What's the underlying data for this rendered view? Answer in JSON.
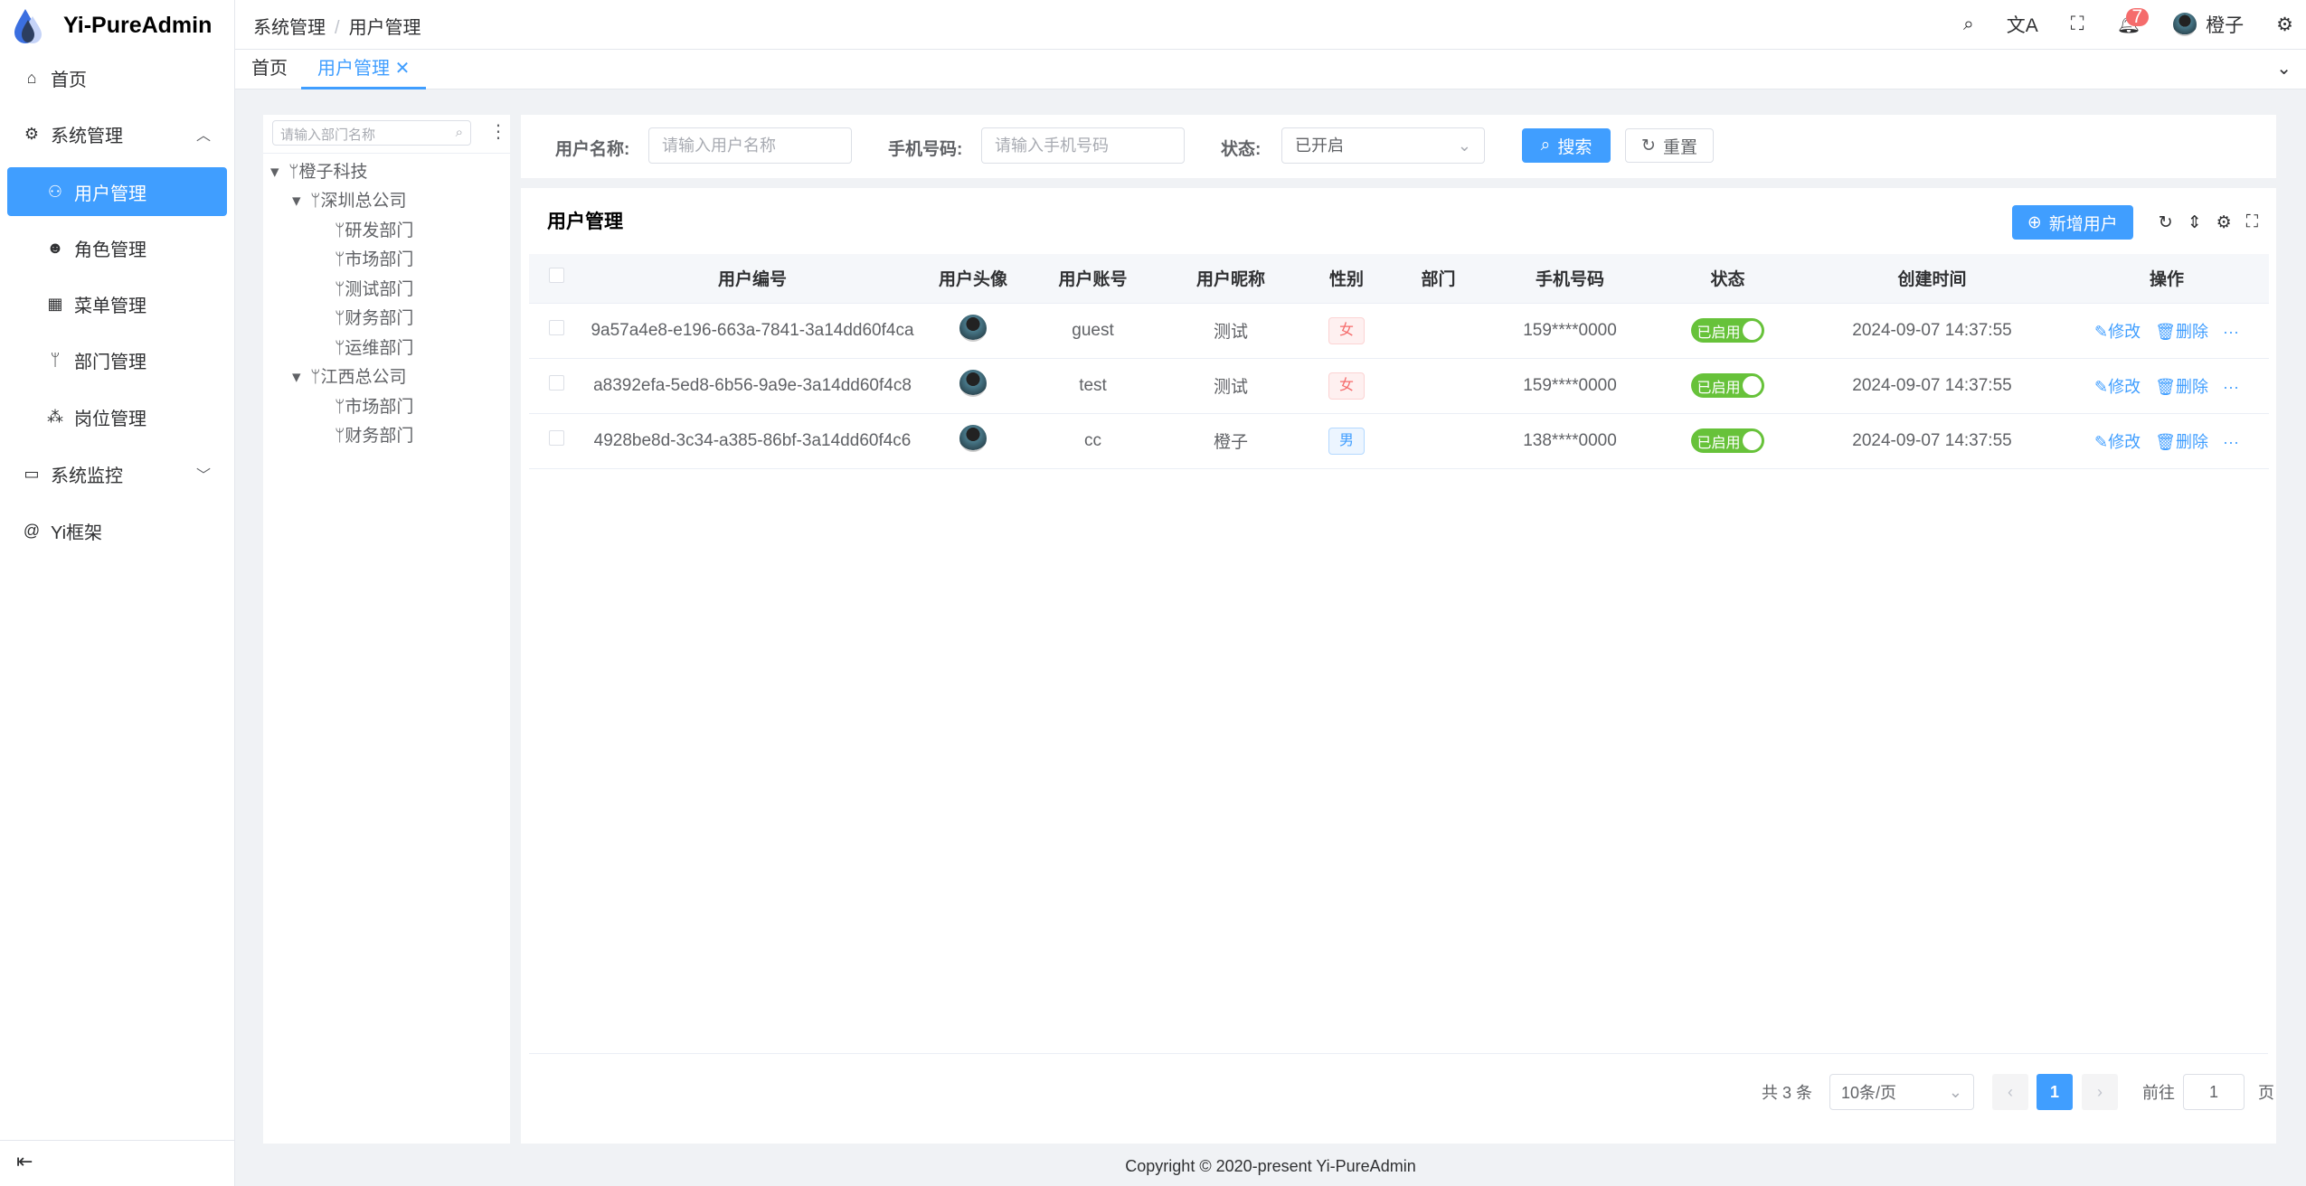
{
  "app": {
    "title": "Yi-PureAdmin",
    "colors": {
      "primary": "#409eff",
      "success": "#67c23a",
      "danger": "#f56c6c"
    }
  },
  "sidebar": {
    "items": [
      {
        "label": "首页",
        "icon": "home-icon"
      },
      {
        "label": "系统管理",
        "icon": "gear-icon",
        "expanded": true
      },
      {
        "label": "用户管理",
        "icon": "user-icon",
        "active": true
      },
      {
        "label": "角色管理",
        "icon": "role-icon"
      },
      {
        "label": "菜单管理",
        "icon": "grid-icon"
      },
      {
        "label": "部门管理",
        "icon": "branch-icon"
      },
      {
        "label": "岗位管理",
        "icon": "org-icon"
      },
      {
        "label": "系统监控",
        "icon": "monitor-icon"
      },
      {
        "label": "Yi框架",
        "icon": "at-icon"
      }
    ]
  },
  "header": {
    "breadcrumb": [
      "系统管理",
      "用户管理"
    ],
    "notification_count": "7",
    "username": "橙子"
  },
  "tabs": [
    {
      "label": "首页"
    },
    {
      "label": "用户管理",
      "active": true
    }
  ],
  "tree": {
    "placeholder": "请输入部门名称",
    "nodes": [
      "橙子科技",
      "深圳总公司",
      "研发部门",
      "市场部门",
      "测试部门",
      "财务部门",
      "运维部门",
      "江西总公司",
      "市场部门",
      "财务部门"
    ]
  },
  "search": {
    "username_label": "用户名称:",
    "username_placeholder": "请输入用户名称",
    "phone_label": "手机号码:",
    "phone_placeholder": "请输入手机号码",
    "status_label": "状态:",
    "status_value": "已开启",
    "search_btn": "搜索",
    "reset_btn": "重置"
  },
  "panel": {
    "title": "用户管理",
    "add_btn": "新增用户"
  },
  "table": {
    "columns": [
      "用户编号",
      "用户头像",
      "用户账号",
      "用户昵称",
      "性别",
      "部门",
      "手机号码",
      "状态",
      "创建时间",
      "操作"
    ],
    "rows": [
      {
        "id": "9a57a4e8-e196-663a-7841-3a14dd60f4ca",
        "account": "guest",
        "nick": "测试",
        "gender": "女",
        "dept": "",
        "phone": "159****0000",
        "status": "已启用",
        "created": "2024-09-07 14:37:55"
      },
      {
        "id": "a8392efa-5ed8-6b56-9a9e-3a14dd60f4c8",
        "account": "test",
        "nick": "测试",
        "gender": "女",
        "dept": "",
        "phone": "159****0000",
        "status": "已启用",
        "created": "2024-09-07 14:37:55"
      },
      {
        "id": "4928be8d-3c34-a385-86bf-3a14dd60f4c6",
        "account": "cc",
        "nick": "橙子",
        "gender": "男",
        "dept": "",
        "phone": "138****0000",
        "status": "已启用",
        "created": "2024-09-07 14:37:55"
      }
    ],
    "edit_label": "修改",
    "delete_label": "删除"
  },
  "pagination": {
    "total": "共 3 条",
    "page_size": "10条/页",
    "current": "1",
    "goto_label": "前往",
    "goto_value": "1",
    "page_suffix": "页"
  },
  "footer": "Copyright © 2020-present Yi-PureAdmin"
}
